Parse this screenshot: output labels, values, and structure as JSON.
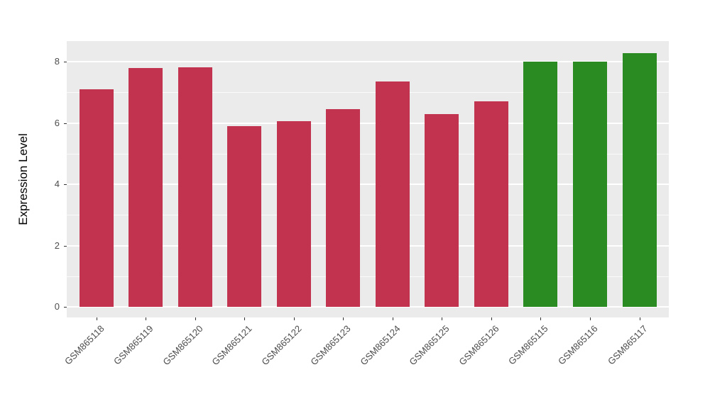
{
  "chart_data": {
    "type": "bar",
    "title": "",
    "xlabel": "",
    "ylabel": "Expression Level",
    "categories": [
      "GSM865118",
      "GSM865119",
      "GSM865120",
      "GSM865121",
      "GSM865122",
      "GSM865123",
      "GSM865124",
      "GSM865125",
      "GSM865126",
      "GSM865115",
      "GSM865116",
      "GSM865117"
    ],
    "values": [
      7.1,
      7.8,
      7.82,
      5.9,
      6.05,
      6.45,
      7.36,
      6.3,
      6.71,
      8.01,
      7.99,
      8.28
    ],
    "bar_colors": [
      "#C2334F",
      "#C2334F",
      "#C2334F",
      "#C2334F",
      "#C2334F",
      "#C2334F",
      "#C2334F",
      "#C2334F",
      "#C2334F",
      "#2A8B22",
      "#2A8B22",
      "#2A8B22"
    ],
    "group_colors": {
      "red": "#C2334F",
      "green": "#2A8B22"
    },
    "ylim": [
      0,
      8.67
    ],
    "yticks": [
      0,
      2,
      4,
      6,
      8
    ],
    "yticks_minor": [
      1,
      3,
      5,
      7
    ],
    "grid": true,
    "legend_position": "none",
    "panel_background": "#EBEBEB",
    "gridline_color": "#FFFFFF",
    "tick_mark_color": "#333333",
    "tick_label_color": "#4D4D4D",
    "axis_title_color": "#000000"
  }
}
